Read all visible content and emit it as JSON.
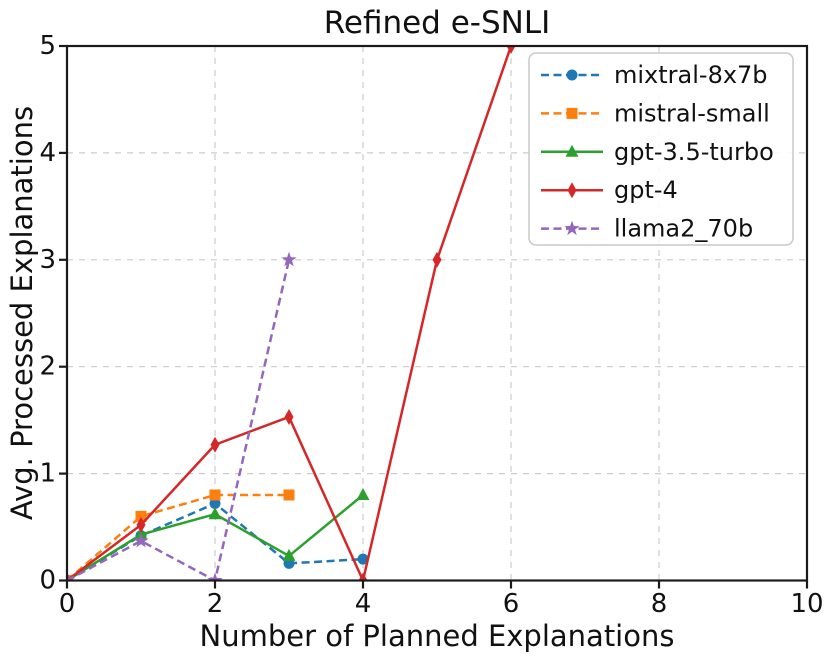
{
  "figure": {
    "title": "Refined e-SNLI"
  },
  "chart_data": {
    "type": "line",
    "title": "Refined e-SNLI",
    "xlabel": "Number of Planned Explanations",
    "ylabel": "Avg. Processed Explanations",
    "xlim": [
      0,
      10
    ],
    "ylim": [
      0,
      5
    ],
    "xticks": [
      0,
      2,
      4,
      6,
      8,
      10
    ],
    "yticks": [
      0,
      1,
      2,
      3,
      4,
      5
    ],
    "grid": true,
    "grid_color": "#cccccc",
    "spine_color": "#1a1a1a",
    "legend_position": "upper right",
    "series": [
      {
        "name": "mixtral-8x7b",
        "color": "#1f77b4",
        "linestyle": "dashed",
        "marker": "circle",
        "points": [
          [
            0,
            0
          ],
          [
            1,
            0.42
          ],
          [
            2,
            0.72
          ],
          [
            3,
            0.16
          ],
          [
            4,
            0.2
          ]
        ]
      },
      {
        "name": "mistral-small",
        "color": "#ff7f0e",
        "linestyle": "dashed",
        "marker": "square",
        "points": [
          [
            0,
            0
          ],
          [
            1,
            0.6
          ],
          [
            2,
            0.8
          ],
          [
            3,
            0.8
          ]
        ]
      },
      {
        "name": "gpt-3.5-turbo",
        "color": "#2ca02c",
        "linestyle": "solid",
        "marker": "triangle",
        "points": [
          [
            0,
            0
          ],
          [
            1,
            0.43
          ],
          [
            2,
            0.62
          ],
          [
            3,
            0.23
          ],
          [
            4,
            0.8
          ]
        ]
      },
      {
        "name": "gpt-4",
        "color": "#d62728",
        "linestyle": "solid",
        "marker": "thin-diamond",
        "points": [
          [
            0,
            0
          ],
          [
            1,
            0.52
          ],
          [
            2,
            1.27
          ],
          [
            3,
            1.53
          ],
          [
            4,
            0
          ],
          [
            5,
            3.0
          ],
          [
            6,
            5.0
          ]
        ]
      },
      {
        "name": "llama2_70b",
        "color": "#9467bd",
        "linestyle": "dashed",
        "marker": "star",
        "points": [
          [
            0,
            0
          ],
          [
            1,
            0.37
          ],
          [
            2,
            0
          ],
          [
            3,
            3.0
          ]
        ]
      }
    ]
  }
}
